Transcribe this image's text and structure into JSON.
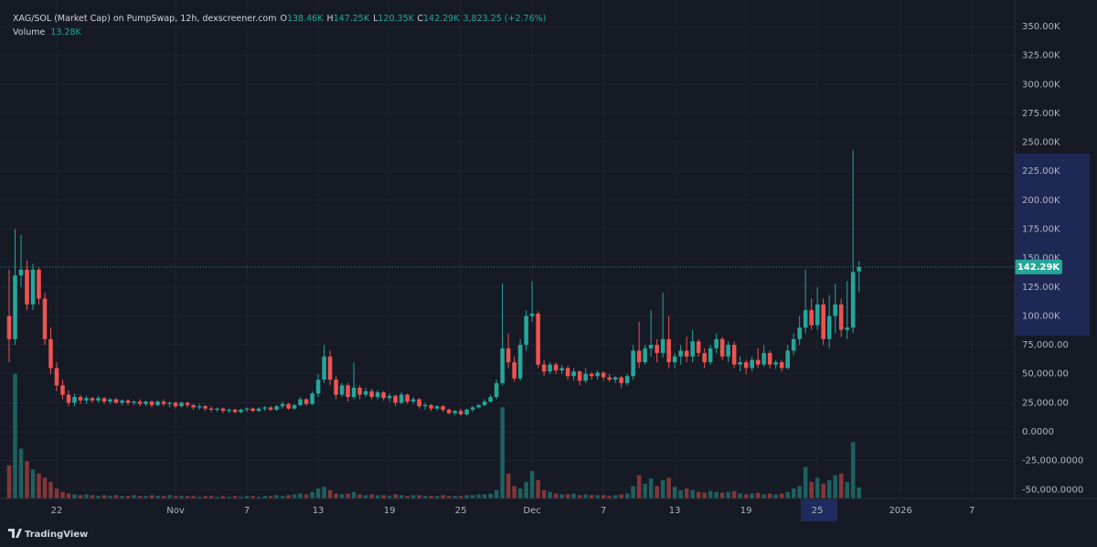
{
  "chart_data": {
    "type": "candlestick",
    "title": "XAG/SOL (Market Cap) on PumpSwap, 12h, dexscreener.com",
    "legend": {
      "o_label": "O",
      "open": "138.46K",
      "h_label": "H",
      "high": "147.25K",
      "l_label": "L",
      "low": "120.35K",
      "c_label": "C",
      "close": "142.29K",
      "change": "3,823.25 (+2.76%)"
    },
    "volume_label": "Volume",
    "volume_value": "13.28K",
    "watermark": "TradingView",
    "up_color": "#26a69a",
    "down_color": "#ef5350",
    "grid": true,
    "ylim": [
      -57700,
      372900
    ],
    "yticks": [
      {
        "value": 350000,
        "label": "350.00K"
      },
      {
        "value": 325000,
        "label": "325.00K"
      },
      {
        "value": 300000,
        "label": "300.00K"
      },
      {
        "value": 275000,
        "label": "275.00K"
      },
      {
        "value": 250000,
        "label": "250.00K"
      },
      {
        "value": 225000,
        "label": "225.00K"
      },
      {
        "value": 200000,
        "label": "200.00K"
      },
      {
        "value": 175000,
        "label": "175.00K"
      },
      {
        "value": 150000,
        "label": "150.00K"
      },
      {
        "value": 125000,
        "label": "125.00K"
      },
      {
        "value": 100000,
        "label": "100.00K"
      },
      {
        "value": 75000,
        "label": "75,000.00"
      },
      {
        "value": 50000,
        "label": "50,000.00"
      },
      {
        "value": 25000,
        "label": "25,000.00"
      },
      {
        "value": 0,
        "label": "0.0000"
      },
      {
        "value": -25000,
        "label": "-25,000.0000"
      },
      {
        "value": -50000,
        "label": "-50,000.0000"
      }
    ],
    "xlim": [
      -1.54,
      169.2
    ],
    "xticks": [
      {
        "value": 8,
        "label": "22"
      },
      {
        "value": 28,
        "label": "Nov"
      },
      {
        "value": 40,
        "label": "7"
      },
      {
        "value": 52,
        "label": "13"
      },
      {
        "value": 64,
        "label": "19"
      },
      {
        "value": 76,
        "label": "25"
      },
      {
        "value": 88,
        "label": "Dec"
      },
      {
        "value": 100,
        "label": "7"
      },
      {
        "value": 112,
        "label": "13"
      },
      {
        "value": 124,
        "label": "19"
      },
      {
        "value": 136,
        "label": "25"
      },
      {
        "value": 150,
        "label": "2026"
      },
      {
        "value": 162,
        "label": "7"
      }
    ],
    "volume_ylim": [
      0,
      600000
    ],
    "open": [
      100000,
      80000,
      135000,
      140000,
      110000,
      140000,
      115000,
      80000,
      55000,
      40000,
      32000,
      25000,
      30000,
      27000,
      29000,
      27000,
      29000,
      26000,
      28000,
      25000,
      27000,
      25000,
      26000,
      24000,
      26000,
      23000,
      26000,
      24000,
      25000,
      22000,
      25000,
      23000,
      21000,
      22000,
      20000,
      19000,
      20000,
      18000,
      19000,
      17000,
      19000,
      20000,
      18000,
      20000,
      21000,
      19000,
      22000,
      24000,
      20000,
      23000,
      28000,
      24000,
      33000,
      45000,
      65000,
      45000,
      32000,
      40000,
      30000,
      38000,
      32000,
      35000,
      30000,
      34000,
      29000,
      31000,
      25000,
      32000,
      26000,
      28000,
      22000,
      23000,
      20000,
      22000,
      19000,
      16000,
      18000,
      15000,
      19000,
      21000,
      23000,
      26000,
      30000,
      42000,
      72000,
      60000,
      46000,
      75000,
      100000,
      102000,
      58000,
      52000,
      58000,
      53000,
      55000,
      48000,
      52000,
      44000,
      50000,
      48000,
      51000,
      47000,
      45000,
      47000,
      42000,
      48000,
      70000,
      60000,
      72000,
      75000,
      68000,
      80000,
      60000,
      65000,
      70000,
      65000,
      78000,
      68000,
      60000,
      72000,
      80000,
      65000,
      75000,
      58000,
      60000,
      55000,
      62000,
      58000,
      68000,
      58000,
      60000,
      55000,
      70000,
      80000,
      90000,
      105000,
      92000,
      110000,
      80000,
      100000,
      110000,
      88000,
      90000,
      138460
    ],
    "high": [
      140000,
      175000,
      170000,
      148000,
      145000,
      142000,
      120000,
      90000,
      60000,
      45000,
      36000,
      33000,
      32000,
      31000,
      30000,
      31000,
      30000,
      29000,
      29000,
      28000,
      28000,
      27000,
      28000,
      27000,
      27000,
      27000,
      28000,
      26000,
      26000,
      26000,
      26000,
      24000,
      24000,
      23000,
      22000,
      21000,
      21000,
      20000,
      20000,
      20000,
      21000,
      21000,
      21000,
      22000,
      22000,
      23000,
      26000,
      25000,
      24000,
      30000,
      29000,
      35000,
      50000,
      75000,
      70000,
      48000,
      42000,
      42000,
      60000,
      40000,
      38000,
      37000,
      36000,
      35000,
      33000,
      32000,
      34000,
      33000,
      30000,
      29000,
      25000,
      24000,
      23000,
      23000,
      20000,
      19000,
      20000,
      20000,
      22000,
      24000,
      28000,
      32000,
      45000,
      128000,
      85000,
      65000,
      80000,
      105000,
      130000,
      104000,
      62000,
      60000,
      60000,
      58000,
      57000,
      55000,
      53000,
      55000,
      52000,
      53000,
      52000,
      50000,
      48000,
      48000,
      50000,
      75000,
      95000,
      75000,
      105000,
      80000,
      120000,
      100000,
      68000,
      75000,
      82000,
      88000,
      80000,
      72000,
      75000,
      85000,
      82000,
      78000,
      78000,
      65000,
      62000,
      65000,
      72000,
      75000,
      70000,
      62000,
      62000,
      75000,
      85000,
      100000,
      140000,
      115000,
      125000,
      115000,
      118000,
      128000,
      115000,
      130000,
      243000,
      147250
    ],
    "low": [
      60000,
      75000,
      125000,
      105000,
      105000,
      110000,
      75000,
      50000,
      35000,
      28000,
      22000,
      22000,
      24000,
      24000,
      25000,
      25000,
      24000,
      24000,
      24000,
      23000,
      23000,
      23000,
      22000,
      22000,
      21000,
      22000,
      22000,
      21000,
      20000,
      21000,
      21000,
      19000,
      19000,
      18000,
      17000,
      17000,
      16000,
      16000,
      16000,
      16000,
      17000,
      17000,
      17000,
      18000,
      18000,
      18000,
      20000,
      19000,
      19000,
      22000,
      22000,
      23000,
      30000,
      42000,
      40000,
      28000,
      30000,
      26000,
      28000,
      28000,
      30000,
      28000,
      28000,
      27000,
      26000,
      22000,
      24000,
      24000,
      24000,
      20000,
      19000,
      18000,
      18000,
      17000,
      15000,
      14000,
      14000,
      14000,
      17000,
      20000,
      22000,
      25000,
      28000,
      40000,
      55000,
      43000,
      44000,
      70000,
      95000,
      55000,
      48000,
      50000,
      50000,
      50000,
      45000,
      44000,
      40000,
      42000,
      45000,
      45000,
      44000,
      43000,
      42000,
      38000,
      40000,
      45000,
      55000,
      58000,
      65000,
      60000,
      64000,
      55000,
      55000,
      58000,
      60000,
      60000,
      65000,
      55000,
      58000,
      68000,
      62000,
      60000,
      55000,
      52000,
      50000,
      52000,
      55000,
      56000,
      55000,
      54000,
      52000,
      54000,
      66000,
      75000,
      85000,
      88000,
      88000,
      75000,
      72000,
      85000,
      82000,
      80000,
      85000,
      120350
    ],
    "close": [
      80000,
      135000,
      140000,
      110000,
      140000,
      115000,
      80000,
      55000,
      40000,
      32000,
      25000,
      30000,
      27000,
      29000,
      27000,
      29000,
      26000,
      28000,
      25000,
      27000,
      25000,
      26000,
      24000,
      26000,
      23000,
      26000,
      24000,
      25000,
      22000,
      25000,
      23000,
      21000,
      22000,
      20000,
      19000,
      20000,
      18000,
      19000,
      17000,
      19000,
      20000,
      18000,
      20000,
      21000,
      19000,
      22000,
      24000,
      20000,
      23000,
      28000,
      24000,
      33000,
      45000,
      65000,
      45000,
      32000,
      40000,
      30000,
      38000,
      32000,
      35000,
      30000,
      34000,
      29000,
      31000,
      25000,
      32000,
      26000,
      28000,
      22000,
      23000,
      20000,
      22000,
      19000,
      16000,
      18000,
      15000,
      19000,
      21000,
      23000,
      26000,
      30000,
      42000,
      72000,
      60000,
      46000,
      75000,
      100000,
      102000,
      58000,
      52000,
      58000,
      53000,
      55000,
      48000,
      52000,
      44000,
      50000,
      48000,
      51000,
      47000,
      45000,
      47000,
      42000,
      48000,
      70000,
      60000,
      72000,
      75000,
      68000,
      80000,
      60000,
      65000,
      70000,
      65000,
      78000,
      68000,
      60000,
      72000,
      80000,
      65000,
      75000,
      58000,
      60000,
      55000,
      62000,
      58000,
      68000,
      58000,
      60000,
      55000,
      70000,
      80000,
      90000,
      105000,
      92000,
      110000,
      80000,
      100000,
      110000,
      88000,
      90000,
      138000,
      142290
    ],
    "volume": [
      40000,
      150000,
      60000,
      45000,
      35000,
      30000,
      25000,
      20000,
      12000,
      8000,
      6000,
      5000,
      4000,
      5000,
      4000,
      3000,
      4000,
      3000,
      4000,
      3000,
      3000,
      4000,
      3000,
      3000,
      4000,
      3000,
      3000,
      4000,
      3000,
      3000,
      3000,
      3000,
      2000,
      3000,
      3000,
      2000,
      3000,
      2000,
      3000,
      2000,
      3000,
      3000,
      2000,
      3000,
      3000,
      4000,
      3000,
      4000,
      5000,
      6000,
      5000,
      8000,
      12000,
      14000,
      10000,
      6000,
      5000,
      6000,
      8000,
      5000,
      4000,
      5000,
      4000,
      4000,
      3000,
      5000,
      4000,
      3000,
      4000,
      4000,
      3000,
      3000,
      3000,
      4000,
      3000,
      3000,
      3000,
      4000,
      4000,
      5000,
      5000,
      6000,
      10000,
      110000,
      30000,
      15000,
      12000,
      20000,
      33000,
      22000,
      10000,
      8000,
      6000,
      5000,
      5000,
      6000,
      4000,
      5000,
      4000,
      4000,
      4000,
      3000,
      4000,
      5000,
      6000,
      15000,
      28000,
      18000,
      24000,
      15000,
      22000,
      25000,
      14000,
      10000,
      12000,
      10000,
      8000,
      7000,
      9000,
      8000,
      7000,
      8000,
      9000,
      6000,
      5000,
      6000,
      7000,
      5000,
      6000,
      5000,
      6000,
      8000,
      12000,
      15000,
      38000,
      20000,
      25000,
      18000,
      22000,
      28000,
      30000,
      20000,
      68000,
      13280
    ]
  }
}
